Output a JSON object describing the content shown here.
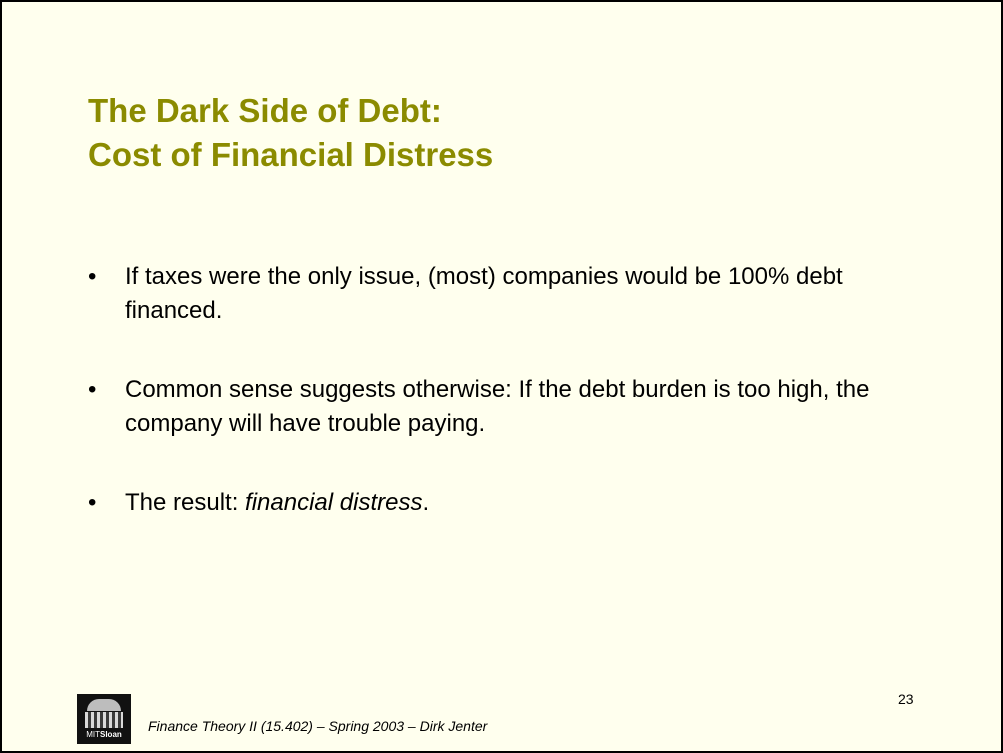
{
  "slide": {
    "title_lines": [
      "The Dark Side of Debt:",
      "Cost of Financial Distress"
    ],
    "bullets": [
      {
        "marker": "•",
        "text": "If taxes were the only issue, (most) companies would be 100% debt financed."
      },
      {
        "marker": "•",
        "text": "Common sense suggests otherwise: If the debt burden is too high, the company will have trouble paying."
      },
      {
        "marker": "•",
        "text_before": "The result: ",
        "emphasis": "financial distress",
        "text_after": "."
      }
    ],
    "page_number": "23",
    "footer": "Finance Theory II (15.402) – Spring 2003 – Dirk Jenter",
    "logo": {
      "text_light": "MIT",
      "text_bold": "Sloan"
    },
    "colors": {
      "background": "#ffffee",
      "title": "#8b8b00",
      "border": "#000000"
    }
  }
}
